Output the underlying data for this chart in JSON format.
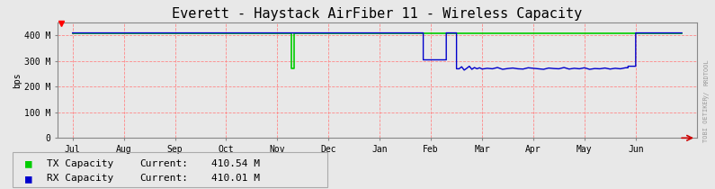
{
  "title": "Everett - Haystack AirFiber 11 - Wireless Capacity",
  "ylabel": "bps",
  "background_color": "#e8e8e8",
  "plot_bg_color": "#e8e8e8",
  "grid_color": "#ff8888",
  "ylim": [
    0,
    450
  ],
  "yticks": [
    0,
    100,
    200,
    300,
    400
  ],
  "ytick_labels": [
    "0",
    "100 M",
    "200 M",
    "300 M",
    "400 M"
  ],
  "month_labels": [
    "Jul",
    "Aug",
    "Sep",
    "Oct",
    "Nov",
    "Dec",
    "Jan",
    "Feb",
    "Mar",
    "Apr",
    "May",
    "Jun"
  ],
  "month_positions": [
    0,
    1,
    2,
    3,
    4,
    5,
    6,
    7,
    8,
    9,
    10,
    11
  ],
  "xlim": [
    -0.3,
    12.2
  ],
  "tx_color": "#00cc00",
  "rx_color": "#0000cc",
  "tx_label": "TX Capacity",
  "rx_label": "RX Capacity",
  "tx_current": "410.54 M",
  "rx_current": "410.01 M",
  "legend_label_current": "Current:",
  "watermark_line1": "RRDTOOL",
  "watermark_line2": "//",
  "watermark_line3": "TOBI OETIKER",
  "tx_x": [
    0.0,
    4.28,
    4.28,
    4.32,
    4.32,
    11.9
  ],
  "tx_y": [
    410,
    410,
    270,
    270,
    410,
    410
  ],
  "rx_x": [
    0.0,
    6.85,
    6.85,
    7.3,
    7.3,
    7.5,
    7.5,
    7.55,
    7.6,
    7.65,
    7.7,
    7.75,
    7.8,
    7.85,
    7.9,
    7.95,
    8.0,
    8.1,
    8.2,
    8.3,
    8.4,
    8.5,
    8.6,
    8.7,
    8.8,
    8.9,
    9.0,
    9.1,
    9.2,
    9.3,
    9.4,
    9.5,
    9.6,
    9.7,
    9.8,
    9.9,
    10.0,
    10.1,
    10.2,
    10.3,
    10.4,
    10.5,
    10.6,
    10.7,
    10.8,
    10.85,
    10.85,
    11.0,
    11.0,
    11.9
  ],
  "rx_y": [
    410,
    410,
    305,
    305,
    410,
    410,
    270,
    270,
    278,
    265,
    272,
    280,
    268,
    275,
    270,
    274,
    269,
    272,
    270,
    275,
    268,
    271,
    273,
    270,
    269,
    274,
    272,
    270,
    268,
    273,
    271,
    270,
    275,
    269,
    272,
    270,
    274,
    268,
    271,
    270,
    273,
    269,
    272,
    270,
    274,
    274,
    280,
    280,
    410,
    410
  ]
}
